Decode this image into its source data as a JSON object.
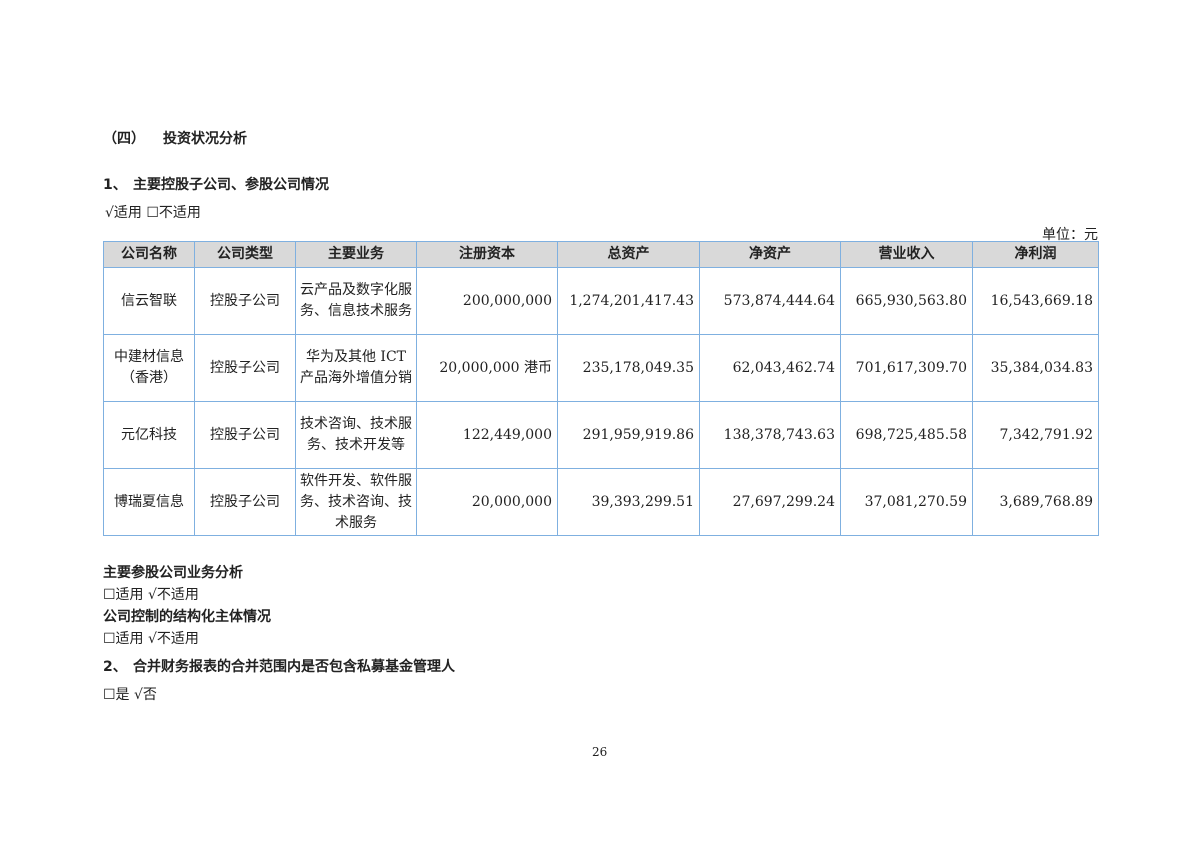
{
  "section_title": {
    "num": "（四）",
    "text": "投资状况分析"
  },
  "sub1": {
    "num": "1、",
    "text": "主要控股子公司、参股公司情况"
  },
  "applicability1": "√适用 ☐不适用",
  "unit": "单位：元",
  "table": {
    "headers": [
      "公司名称",
      "公司类型",
      "主要业务",
      "注册资本",
      "总资产",
      "净资产",
      "营业收入",
      "净利润"
    ],
    "rows": [
      [
        "信云智联",
        "控股子公司",
        "云产品及数字化服务、信息技术服务",
        "200,000,000",
        "1,274,201,417.43",
        "573,874,444.64",
        "665,930,563.80",
        "16,543,669.18"
      ],
      [
        "中建材信息（香港）",
        "控股子公司",
        "华为及其他 ICT 产品海外增值分销",
        "20,000,000 港币",
        "235,178,049.35",
        "62,043,462.74",
        "701,617,309.70",
        "35,384,034.83"
      ],
      [
        "元亿科技",
        "控股子公司",
        "技术咨询、技术服务、技术开发等",
        "122,449,000",
        "291,959,919.86",
        "138,378,743.63",
        "698,725,485.58",
        "7,342,791.92"
      ],
      [
        "博瑞夏信息",
        "控股子公司",
        "软件开发、软件服务、技术咨询、技术服务",
        "20,000,000",
        "39,393,299.51",
        "27,697,299.24",
        "37,081,270.59",
        "3,689,768.89"
      ]
    ]
  },
  "analysis_title": "主要参股公司业务分析",
  "applicability2": "☐适用 √不适用",
  "structured_title": "公司控制的结构化主体情况",
  "applicability3": "☐适用 √不适用",
  "sub2": {
    "num": "2、",
    "text": "合并财务报表的合并范围内是否包含私募基金管理人"
  },
  "answer2": "☐是 √否",
  "page_number": "26"
}
